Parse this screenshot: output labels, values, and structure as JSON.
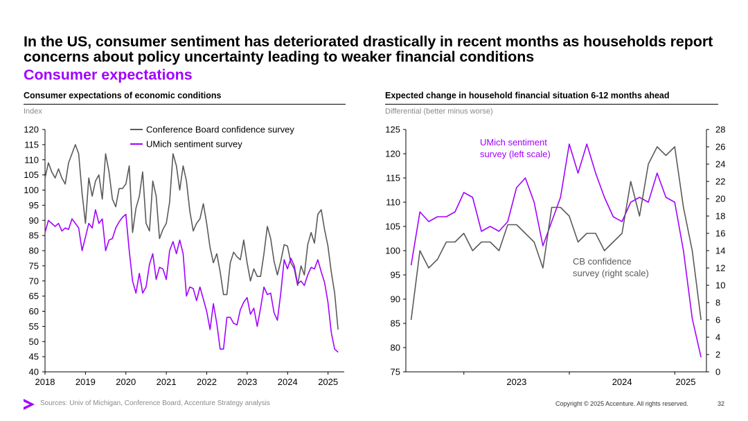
{
  "page": {
    "title": "In the US, consumer sentiment has deteriorated drastically in recent months as households report concerns about policy uncertainty leading to weaker financial conditions",
    "subtitle": "Consumer expectations",
    "footer_source": "Sources: Univ of Michigan, Conference Board, Accenture Strategy analysis",
    "copyright": "Copyright © 2025 Accenture. All rights reserved.",
    "page_number": "32"
  },
  "colors": {
    "accent": "#a100ff",
    "cb": "#595959",
    "text": "#000000",
    "muted": "#8a8a8a"
  },
  "chart_data": [
    {
      "type": "line",
      "title": "Consumer expectations of economic conditions",
      "ylabel": "Index",
      "ylim": [
        40,
        120
      ],
      "yticks": [
        40,
        45,
        50,
        55,
        60,
        65,
        70,
        75,
        80,
        85,
        90,
        95,
        100,
        105,
        110,
        115,
        120
      ],
      "xlim": [
        2018,
        2025.4
      ],
      "xticks": [
        "2018",
        "2019",
        "2020",
        "2021",
        "2022",
        "2023",
        "2024",
        "2025"
      ],
      "legend": "top",
      "series": [
        {
          "name": "Conference Board confidence survey",
          "color": "#595959",
          "x_start": 2018.0,
          "x_step": 0.0833,
          "values": [
            104,
            109,
            106,
            104,
            107,
            104,
            102,
            109,
            112,
            115,
            112,
            99,
            89,
            104,
            98,
            103,
            105,
            97,
            112,
            106,
            97,
            94.5,
            100.5,
            100.5,
            102,
            108,
            86,
            94,
            98,
            106,
            89,
            86.5,
            103,
            98,
            84,
            87,
            89,
            96,
            112,
            108,
            100,
            108,
            103,
            93,
            86.5,
            89,
            90.5,
            95.5,
            89,
            81,
            76,
            79,
            73,
            65.5,
            65.5,
            76,
            79.5,
            78,
            77,
            83.5,
            76,
            70,
            74,
            71.5,
            71.5,
            79,
            88,
            84,
            76.5,
            72,
            76.5,
            82,
            81.5,
            76,
            74,
            68.5,
            75,
            72,
            82,
            86,
            82.5,
            92,
            93.5,
            87,
            81.5,
            73,
            66,
            54
          ]
        },
        {
          "name": "UMich sentiment survey",
          "color": "#a100ff",
          "x_start": 2018.0,
          "x_step": 0.0833,
          "values": [
            86,
            90,
            89,
            88,
            89,
            86.5,
            87.5,
            87,
            90.5,
            89,
            87.5,
            80,
            84.5,
            89,
            87.5,
            93.5,
            89,
            90.5,
            80,
            83.5,
            84,
            87.5,
            89.5,
            91,
            92,
            80,
            70,
            66,
            72.5,
            66,
            68,
            75.5,
            79,
            70.5,
            74.5,
            74,
            70.5,
            80,
            83,
            79,
            83.5,
            79,
            65,
            68,
            67.5,
            63.5,
            68,
            64,
            60,
            54,
            62.5,
            56,
            47.5,
            47.5,
            58,
            58,
            56,
            55.5,
            60.5,
            63,
            64.5,
            59,
            61,
            55,
            61,
            68,
            65.5,
            66,
            59.5,
            57,
            66,
            77,
            74,
            77.5,
            75,
            69,
            70,
            68.5,
            72,
            74.5,
            74,
            77,
            73,
            69.5,
            63,
            53,
            47.5,
            46.5
          ]
        }
      ]
    },
    {
      "type": "line",
      "title": "Expected change in household financial situation 6-12 months ahead",
      "ylabel": "Differential (better minus worse)",
      "ylim_left": [
        75,
        125
      ],
      "yticks_left": [
        75,
        80,
        85,
        90,
        95,
        100,
        105,
        110,
        115,
        120,
        125
      ],
      "ylim_right": [
        0,
        28
      ],
      "yticks_right": [
        0,
        2,
        4,
        6,
        8,
        10,
        12,
        14,
        16,
        18,
        20,
        22,
        24,
        26,
        28
      ],
      "xlim": [
        2022.45,
        2025.3
      ],
      "xticks": [
        "2023",
        "2024",
        "2025"
      ],
      "annotations": [
        "UMich sentiment survey (left scale)",
        "CB confidence survey (right scale)"
      ],
      "series": [
        {
          "name": "UMich sentiment survey (left scale)",
          "axis": "left",
          "color": "#a100ff",
          "x_start": 2022.5,
          "x_step": 0.0833,
          "values": [
            97,
            108,
            106,
            107,
            107,
            108,
            112,
            111,
            104,
            105,
            104,
            106,
            113,
            115,
            110,
            101,
            106,
            111,
            122,
            116,
            122,
            116,
            111,
            107,
            106,
            110,
            111,
            110,
            116,
            111,
            110,
            100,
            86,
            78
          ]
        },
        {
          "name": "CB confidence survey (right scale)",
          "axis": "right",
          "color": "#595959",
          "x_start": 2022.5,
          "x_step": 0.0833,
          "values": [
            6,
            14,
            12,
            13,
            15,
            15,
            16,
            14,
            15,
            15,
            14,
            17,
            17,
            16,
            15,
            12,
            19,
            19,
            18,
            15,
            16,
            16,
            14,
            15,
            16,
            22,
            18,
            24,
            26,
            25,
            26,
            19,
            14,
            6
          ]
        }
      ]
    }
  ]
}
